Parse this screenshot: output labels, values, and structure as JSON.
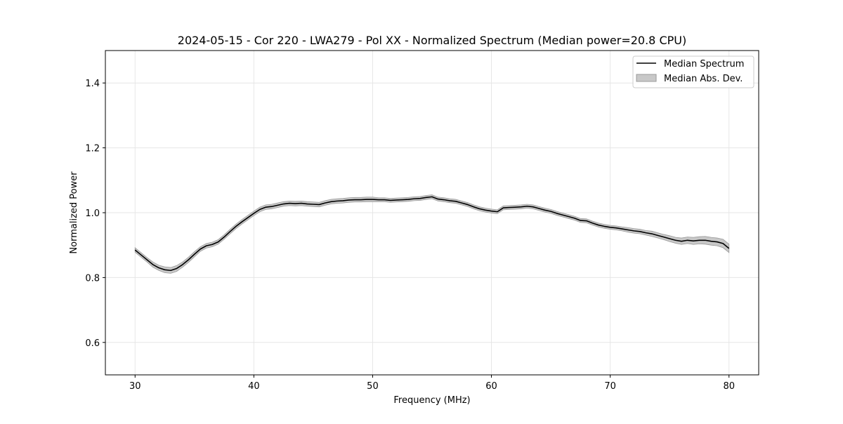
{
  "chart_data": {
    "type": "area",
    "title": "2024-05-15 - Cor 220 - LWA279 - Pol XX - Normalized Spectrum (Median power=20.8 CPU)",
    "xlabel": "Frequency (MHz)",
    "ylabel": "Normalized Power",
    "xlim": [
      27.5,
      82.5
    ],
    "ylim": [
      0.5,
      1.5
    ],
    "xticks": [
      30,
      40,
      50,
      60,
      70,
      80
    ],
    "xtick_labels": [
      "30",
      "40",
      "50",
      "60",
      "70",
      "80"
    ],
    "yticks": [
      0.6,
      0.8,
      1.0,
      1.2,
      1.4
    ],
    "ytick_labels": [
      "0.6",
      "0.8",
      "1.0",
      "1.2",
      "1.4"
    ],
    "grid": true,
    "legend_placement": "top-right",
    "legend": [
      "Median Spectrum",
      "Median Abs. Dev."
    ],
    "series": [
      {
        "name": "Median Spectrum",
        "color": "#000000",
        "x": [
          30,
          30.5,
          31,
          31.5,
          32,
          32.5,
          33,
          33.5,
          34,
          34.5,
          35,
          35.5,
          36,
          36.5,
          37,
          37.5,
          38,
          38.5,
          39,
          39.5,
          40,
          40.5,
          41,
          41.5,
          42,
          42.5,
          43,
          43.5,
          44,
          44.5,
          45,
          45.5,
          46,
          46.5,
          47,
          47.5,
          48,
          48.5,
          49,
          49.5,
          50,
          50.5,
          51,
          51.5,
          52,
          52.5,
          53,
          53.5,
          54,
          54.5,
          55,
          55.5,
          56,
          56.5,
          57,
          57.5,
          58,
          58.5,
          59,
          59.5,
          60,
          60.5,
          61,
          61.5,
          62,
          62.5,
          63,
          63.5,
          64,
          64.5,
          65,
          65.5,
          66,
          66.5,
          67,
          67.5,
          68,
          68.5,
          69,
          69.5,
          70,
          70.5,
          71,
          71.5,
          72,
          72.5,
          73,
          73.5,
          74,
          74.5,
          75,
          75.5,
          76,
          76.5,
          77,
          77.5,
          78,
          78.5,
          79,
          79.5,
          80
        ],
        "y": [
          0.885,
          0.87,
          0.855,
          0.84,
          0.83,
          0.824,
          0.822,
          0.828,
          0.84,
          0.855,
          0.872,
          0.888,
          0.898,
          0.902,
          0.91,
          0.925,
          0.942,
          0.958,
          0.972,
          0.985,
          0.998,
          1.01,
          1.017,
          1.019,
          1.023,
          1.027,
          1.029,
          1.028,
          1.029,
          1.027,
          1.026,
          1.025,
          1.03,
          1.034,
          1.036,
          1.037,
          1.039,
          1.04,
          1.04,
          1.041,
          1.041,
          1.04,
          1.04,
          1.038,
          1.039,
          1.04,
          1.041,
          1.043,
          1.044,
          1.047,
          1.049,
          1.042,
          1.04,
          1.037,
          1.035,
          1.03,
          1.025,
          1.018,
          1.012,
          1.008,
          1.005,
          1.003,
          1.015,
          1.016,
          1.017,
          1.018,
          1.02,
          1.018,
          1.013,
          1.008,
          1.004,
          0.998,
          0.993,
          0.988,
          0.983,
          0.976,
          0.975,
          0.968,
          0.962,
          0.958,
          0.955,
          0.953,
          0.95,
          0.947,
          0.944,
          0.942,
          0.938,
          0.935,
          0.93,
          0.925,
          0.92,
          0.915,
          0.912,
          0.915,
          0.913,
          0.915,
          0.915,
          0.912,
          0.91,
          0.905,
          0.89
        ]
      },
      {
        "name": "Median Abs. Dev.",
        "color": "#c8c8c8",
        "edge_color": "#9a9a9a",
        "x": [
          30,
          30.5,
          31,
          31.5,
          32,
          32.5,
          33,
          33.5,
          34,
          34.5,
          35,
          35.5,
          36,
          36.5,
          37,
          37.5,
          38,
          38.5,
          39,
          39.5,
          40,
          40.5,
          41,
          41.5,
          42,
          42.5,
          43,
          43.5,
          44,
          44.5,
          45,
          45.5,
          46,
          46.5,
          47,
          47.5,
          48,
          48.5,
          49,
          49.5,
          50,
          50.5,
          51,
          51.5,
          52,
          52.5,
          53,
          53.5,
          54,
          54.5,
          55,
          55.5,
          56,
          56.5,
          57,
          57.5,
          58,
          58.5,
          59,
          59.5,
          60,
          60.5,
          61,
          61.5,
          62,
          62.5,
          63,
          63.5,
          64,
          64.5,
          65,
          65.5,
          66,
          66.5,
          67,
          67.5,
          68,
          68.5,
          69,
          69.5,
          70,
          70.5,
          71,
          71.5,
          72,
          72.5,
          73,
          73.5,
          74,
          74.5,
          75,
          75.5,
          76,
          76.5,
          77,
          77.5,
          78,
          78.5,
          79,
          79.5,
          80
        ],
        "half_width": [
          0.007,
          0.007,
          0.007,
          0.008,
          0.008,
          0.009,
          0.009,
          0.009,
          0.008,
          0.008,
          0.008,
          0.007,
          0.007,
          0.007,
          0.007,
          0.007,
          0.007,
          0.007,
          0.007,
          0.007,
          0.007,
          0.007,
          0.007,
          0.007,
          0.007,
          0.007,
          0.007,
          0.007,
          0.007,
          0.007,
          0.007,
          0.007,
          0.007,
          0.007,
          0.007,
          0.007,
          0.007,
          0.007,
          0.007,
          0.007,
          0.007,
          0.006,
          0.006,
          0.006,
          0.006,
          0.006,
          0.006,
          0.006,
          0.006,
          0.006,
          0.006,
          0.006,
          0.006,
          0.006,
          0.006,
          0.006,
          0.006,
          0.006,
          0.006,
          0.006,
          0.006,
          0.006,
          0.006,
          0.006,
          0.006,
          0.006,
          0.006,
          0.006,
          0.006,
          0.006,
          0.006,
          0.006,
          0.006,
          0.006,
          0.006,
          0.006,
          0.006,
          0.006,
          0.006,
          0.006,
          0.006,
          0.006,
          0.006,
          0.007,
          0.007,
          0.007,
          0.007,
          0.008,
          0.008,
          0.008,
          0.009,
          0.009,
          0.01,
          0.01,
          0.011,
          0.011,
          0.012,
          0.012,
          0.012,
          0.013,
          0.013
        ]
      }
    ]
  }
}
